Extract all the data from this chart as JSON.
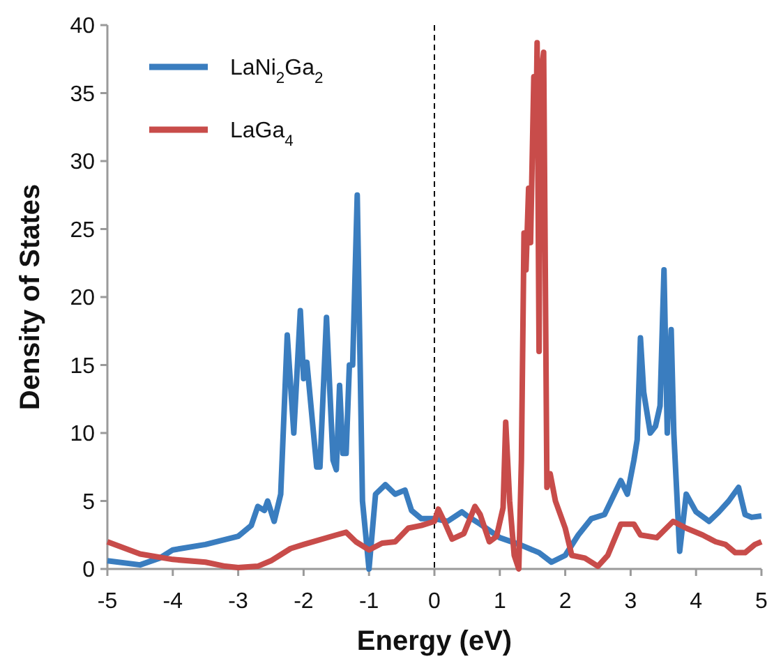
{
  "chart_data": {
    "type": "line",
    "xlabel": "Energy (eV)",
    "ylabel": "Density of States",
    "xlim": [
      -5,
      5
    ],
    "xticks": [
      -5,
      -4,
      -3,
      -2,
      -1,
      0,
      1,
      2,
      3,
      4,
      5
    ],
    "ylim": [
      0,
      40
    ],
    "yticks": [
      0,
      5,
      10,
      15,
      20,
      25,
      30,
      35,
      40
    ],
    "grid": false,
    "legend": "top left",
    "marker": "none",
    "line_style": "solid",
    "ref_lines": [
      {
        "axis": "x",
        "value": 0,
        "color": "#000000",
        "line_style": "dashed"
      }
    ],
    "series": [
      {
        "name": "LaNi$_{2}$Ga$_{2}$",
        "color": "#3a7dbf",
        "x": [
          -5,
          -4.5,
          -4.2,
          -4,
          -3.5,
          -3,
          -2.8,
          -2.7,
          -2.6,
          -2.55,
          -2.45,
          -2.35,
          -2.25,
          -2.15,
          -2.05,
          -2,
          -1.95,
          -1.8,
          -1.75,
          -1.65,
          -1.55,
          -1.5,
          -1.45,
          -1.4,
          -1.35,
          -1.3,
          -1.25,
          -1.18,
          -1.1,
          -1,
          -0.9,
          -0.75,
          -0.6,
          -0.45,
          -0.35,
          -0.2,
          0,
          0.2,
          0.42,
          0.5,
          0.7,
          1,
          1.3,
          1.6,
          1.79,
          2,
          2.2,
          2.4,
          2.6,
          2.85,
          2.95,
          3.05,
          3.1,
          3.15,
          3.2,
          3.3,
          3.38,
          3.45,
          3.51,
          3.56,
          3.62,
          3.66,
          3.75,
          3.85,
          4,
          4.2,
          4.35,
          4.5,
          4.65,
          4.75,
          4.85,
          5
        ],
        "values": [
          0.6,
          0.3,
          0.8,
          1.4,
          1.8,
          2.4,
          3.2,
          4.6,
          4.3,
          5,
          3.5,
          5.5,
          17.2,
          10,
          19,
          14,
          15.2,
          7.5,
          7.5,
          18.5,
          8,
          7.3,
          13.5,
          8.5,
          8.5,
          15,
          15,
          27.5,
          5,
          0,
          5.5,
          6.2,
          5.5,
          5.8,
          4.3,
          3.7,
          3.7,
          3.5,
          4.2,
          3.9,
          3.3,
          2.3,
          1.8,
          1.2,
          0.5,
          1,
          2.5,
          3.7,
          4,
          6.5,
          5.5,
          8,
          9.5,
          17,
          13,
          10,
          10.5,
          12,
          22,
          10,
          17.6,
          10,
          1.3,
          5.5,
          4.2,
          3.5,
          4.2,
          5,
          6,
          4,
          3.8,
          3.9
        ]
      },
      {
        "name": "LaGa$_{4}$",
        "color": "#c84c4a",
        "x": [
          -5,
          -4.5,
          -4,
          -3.5,
          -3.2,
          -3,
          -2.7,
          -2.5,
          -2.2,
          -2,
          -1.5,
          -1.35,
          -1.2,
          -1,
          -0.8,
          -0.6,
          -0.4,
          -0.2,
          0,
          0.06,
          0.15,
          0.27,
          0.45,
          0.62,
          0.7,
          0.84,
          0.95,
          1.05,
          1.09,
          1.15,
          1.22,
          1.29,
          1.33,
          1.37,
          1.4,
          1.44,
          1.47,
          1.52,
          1.55,
          1.57,
          1.6,
          1.62,
          1.67,
          1.72,
          1.77,
          1.85,
          2,
          2.1,
          2.3,
          2.5,
          2.65,
          2.85,
          3.05,
          3.15,
          3.4,
          3.65,
          3.85,
          4.1,
          4.3,
          4.45,
          4.6,
          4.75,
          4.9,
          5
        ],
        "values": [
          2,
          1.1,
          0.7,
          0.5,
          0.2,
          0.1,
          0.2,
          0.6,
          1.5,
          1.8,
          2.5,
          2.7,
          2,
          1.4,
          1.9,
          2,
          3,
          3.2,
          3.5,
          4.4,
          3.5,
          2.2,
          2.6,
          4.6,
          4,
          2,
          2.4,
          4.5,
          10.8,
          5,
          1,
          0,
          8,
          24.7,
          22,
          28,
          24,
          36.2,
          31,
          38.7,
          16,
          36,
          38,
          6,
          7,
          5,
          3,
          1,
          0.8,
          0.2,
          1,
          3.3,
          3.3,
          2.5,
          2.3,
          3.5,
          3,
          2.5,
          2,
          1.8,
          1.2,
          1.2,
          1.8,
          2
        ]
      }
    ]
  }
}
